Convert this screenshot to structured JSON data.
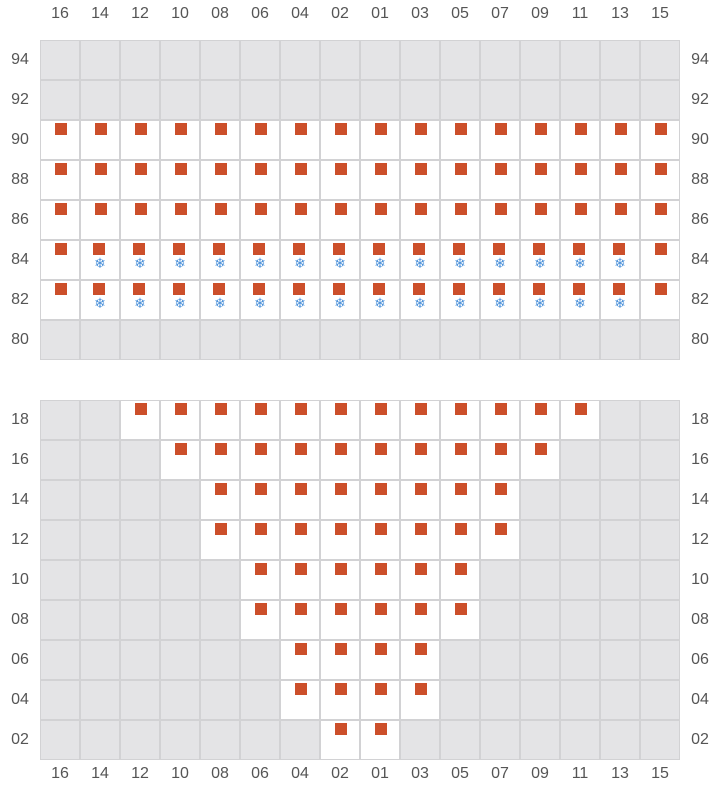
{
  "columns": [
    "16",
    "14",
    "12",
    "10",
    "08",
    "06",
    "04",
    "02",
    "01",
    "03",
    "05",
    "07",
    "09",
    "11",
    "13",
    "15"
  ],
  "colors": {
    "occupied": "#cc4f2a",
    "cold": "#4a90d9",
    "unavailable": "#e4e4e6",
    "available": "#ffffff"
  },
  "snow_icon": "❄",
  "top_grid": {
    "rows": [
      {
        "label": "94",
        "active": [],
        "snow": []
      },
      {
        "label": "92",
        "active": [],
        "snow": []
      },
      {
        "label": "90",
        "active": [
          0,
          15
        ],
        "snow": []
      },
      {
        "label": "88",
        "active": [
          0,
          15
        ],
        "snow": []
      },
      {
        "label": "86",
        "active": [
          0,
          15
        ],
        "snow": []
      },
      {
        "label": "84",
        "active": [
          0,
          15
        ],
        "snow": [
          1,
          14
        ]
      },
      {
        "label": "82",
        "active": [
          0,
          15
        ],
        "snow": [
          1,
          14
        ]
      },
      {
        "label": "80",
        "active": [],
        "snow": []
      }
    ]
  },
  "bottom_grid": {
    "rows": [
      {
        "label": "18",
        "active": [
          2,
          13
        ],
        "snow": []
      },
      {
        "label": "16",
        "active": [
          3,
          12
        ],
        "snow": []
      },
      {
        "label": "14",
        "active": [
          4,
          11
        ],
        "snow": []
      },
      {
        "label": "12",
        "active": [
          4,
          11
        ],
        "snow": []
      },
      {
        "label": "10",
        "active": [
          5,
          10
        ],
        "snow": []
      },
      {
        "label": "08",
        "active": [
          5,
          10
        ],
        "snow": []
      },
      {
        "label": "06",
        "active": [
          6,
          9
        ],
        "snow": []
      },
      {
        "label": "04",
        "active": [
          6,
          9
        ],
        "snow": []
      },
      {
        "label": "02",
        "active": [
          7,
          8
        ],
        "snow": []
      }
    ]
  }
}
